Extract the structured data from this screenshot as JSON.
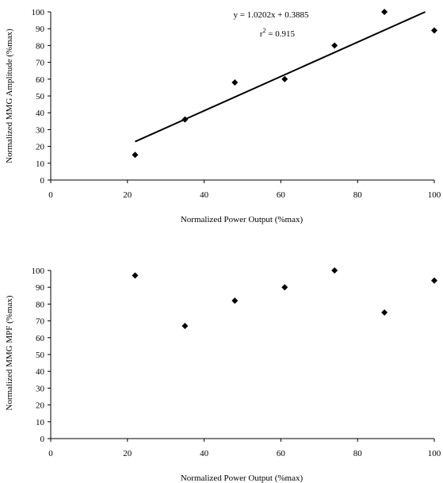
{
  "chart_data": [
    {
      "type": "scatter",
      "xlabel": "Normalized Power Output (%max)",
      "ylabel": "Normalized MMG Amplitude (%max)",
      "xlim": [
        0,
        100
      ],
      "ylim": [
        0,
        100
      ],
      "x_ticks": [
        "0",
        "20",
        "40",
        "60",
        "80",
        "100"
      ],
      "y_ticks": [
        "0",
        "10",
        "20",
        "30",
        "40",
        "50",
        "60",
        "70",
        "80",
        "90",
        "100"
      ],
      "grid": false,
      "legend": "none",
      "marker": "diamond",
      "series": [
        {
          "x": [
            22,
            35,
            48,
            61,
            74,
            87,
            100
          ],
          "y": [
            15,
            36,
            58,
            60,
            80,
            100,
            89
          ]
        }
      ],
      "trendline": {
        "slope": 1.0202,
        "intercept": 0.3885,
        "x_range": [
          22,
          100
        ]
      },
      "equation": "y = 1.0202x + 0.3885",
      "r2_label": "r",
      "r2_sup": "2",
      "r2_value": " = 0.915"
    },
    {
      "type": "scatter",
      "xlabel": "Normalized Power Output (%max)",
      "ylabel": "Normalized MMG MPF (%max)",
      "xlim": [
        0,
        100
      ],
      "ylim": [
        0,
        100
      ],
      "x_ticks": [
        "0",
        "20",
        "40",
        "60",
        "80",
        "100"
      ],
      "y_ticks": [
        "0",
        "10",
        "20",
        "30",
        "40",
        "50",
        "60",
        "70",
        "80",
        "90",
        "100"
      ],
      "grid": false,
      "legend": "none",
      "marker": "diamond",
      "series": [
        {
          "x": [
            22,
            35,
            48,
            61,
            74,
            87,
            100
          ],
          "y": [
            97,
            67,
            82,
            90,
            100,
            75,
            94
          ]
        }
      ]
    }
  ]
}
